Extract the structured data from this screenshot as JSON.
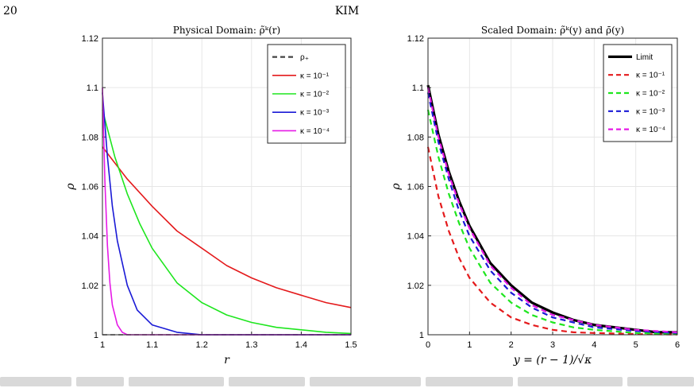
{
  "page": {
    "number": "20",
    "running_head": "KIM"
  },
  "colors": {
    "rho_plus": "#444444",
    "k1": "#e41a1c",
    "k2": "#1ee61e",
    "k3": "#1a1ad6",
    "k4": "#e61ae6",
    "limit": "#000000"
  },
  "chart_data": [
    {
      "type": "line",
      "title": "Physical Domain: ρ̃ᵏ(r)",
      "xlabel": "r",
      "ylabel": "ρ",
      "xlim": [
        1,
        1.5
      ],
      "ylim": [
        1,
        1.12
      ],
      "xticks": [
        "1",
        "1.1",
        "1.2",
        "1.3",
        "1.4",
        "1.5"
      ],
      "yticks": [
        "1",
        "1.02",
        "1.04",
        "1.06",
        "1.08",
        "1.1",
        "1.12"
      ],
      "grid": true,
      "legend_position": "top-right",
      "series": [
        {
          "name": "ρ₊",
          "style": "dashed",
          "color": "#444444",
          "x": [
            1,
            1.5
          ],
          "y": [
            1,
            1
          ]
        },
        {
          "name": "κ = 10⁻¹",
          "style": "solid",
          "color": "#e41a1c",
          "x": [
            1,
            1.05,
            1.1,
            1.15,
            1.2,
            1.25,
            1.3,
            1.35,
            1.4,
            1.45,
            1.5
          ],
          "y": [
            1.076,
            1.063,
            1.052,
            1.042,
            1.035,
            1.028,
            1.023,
            1.019,
            1.016,
            1.013,
            1.011
          ]
        },
        {
          "name": "κ = 10⁻²",
          "style": "solid",
          "color": "#1ee61e",
          "x": [
            1,
            1.025,
            1.05,
            1.075,
            1.1,
            1.15,
            1.2,
            1.25,
            1.3,
            1.35,
            1.4,
            1.45,
            1.5
          ],
          "y": [
            1.091,
            1.072,
            1.057,
            1.045,
            1.035,
            1.021,
            1.013,
            1.008,
            1.005,
            1.003,
            1.002,
            1.001,
            1.0005
          ]
        },
        {
          "name": "κ = 10⁻³",
          "style": "solid",
          "color": "#1a1ad6",
          "x": [
            1,
            1.01,
            1.02,
            1.03,
            1.05,
            1.07,
            1.1,
            1.15,
            1.2,
            1.3,
            1.5
          ],
          "y": [
            1.098,
            1.072,
            1.052,
            1.038,
            1.02,
            1.01,
            1.004,
            1.001,
            1.0,
            1.0,
            1.0
          ]
        },
        {
          "name": "κ = 10⁻⁴",
          "style": "solid",
          "color": "#e61ae6",
          "x": [
            1,
            1.005,
            1.01,
            1.015,
            1.02,
            1.03,
            1.04,
            1.05,
            1.07,
            1.1,
            1.5
          ],
          "y": [
            1.1,
            1.062,
            1.036,
            1.021,
            1.012,
            1.004,
            1.001,
            1.0,
            1.0,
            1.0,
            1.0
          ]
        }
      ]
    },
    {
      "type": "line",
      "title": "Scaled Domain: ρ̃ᵏ(y) and ρ̄(y)",
      "xlabel": "y = (r − 1)/√κ",
      "ylabel": "ρ",
      "xlim": [
        0,
        6
      ],
      "ylim": [
        1,
        1.12
      ],
      "xticks": [
        "0",
        "1",
        "2",
        "3",
        "4",
        "5",
        "6"
      ],
      "yticks": [
        "1",
        "1.02",
        "1.04",
        "1.06",
        "1.08",
        "1.1",
        "1.12"
      ],
      "grid": true,
      "legend_position": "top-right",
      "series": [
        {
          "name": "Limit",
          "style": "solid-thick",
          "color": "#000000",
          "x": [
            0,
            0.25,
            0.5,
            0.75,
            1,
            1.5,
            2,
            2.5,
            3,
            3.5,
            4,
            4.5,
            5,
            5.5,
            6
          ],
          "y": [
            1.101,
            1.081,
            1.066,
            1.054,
            1.044,
            1.029,
            1.02,
            1.013,
            1.009,
            1.006,
            1.004,
            1.003,
            1.002,
            1.001,
            1.001
          ]
        },
        {
          "name": "κ = 10⁻¹",
          "style": "dashed",
          "color": "#e41a1c",
          "x": [
            0,
            0.25,
            0.5,
            0.75,
            1,
            1.5,
            2,
            2.5,
            3,
            3.5,
            4,
            5,
            6
          ],
          "y": [
            1.076,
            1.056,
            1.042,
            1.031,
            1.023,
            1.013,
            1.007,
            1.004,
            1.002,
            1.001,
            1.0007,
            1.0003,
            1.0001
          ]
        },
        {
          "name": "κ = 10⁻²",
          "style": "dashed",
          "color": "#1ee61e",
          "x": [
            0,
            0.25,
            0.5,
            0.75,
            1,
            1.5,
            2,
            2.5,
            3,
            3.5,
            4,
            5,
            6
          ],
          "y": [
            1.091,
            1.072,
            1.057,
            1.045,
            1.035,
            1.021,
            1.013,
            1.008,
            1.005,
            1.003,
            1.002,
            1.0007,
            1.0003
          ]
        },
        {
          "name": "κ = 10⁻³",
          "style": "dashed",
          "color": "#1a1ad6",
          "x": [
            0,
            0.25,
            0.5,
            0.75,
            1,
            1.5,
            2,
            2.5,
            3,
            3.5,
            4,
            5,
            6
          ],
          "y": [
            1.098,
            1.078,
            1.063,
            1.05,
            1.04,
            1.026,
            1.017,
            1.011,
            1.007,
            1.005,
            1.003,
            1.0015,
            1.0007
          ]
        },
        {
          "name": "κ = 10⁻⁴",
          "style": "dashed",
          "color": "#e61ae6",
          "x": [
            0,
            0.25,
            0.5,
            0.75,
            1,
            1.5,
            2,
            2.5,
            3,
            3.5,
            4,
            5,
            6
          ],
          "y": [
            1.1,
            1.08,
            1.065,
            1.053,
            1.043,
            1.028,
            1.019,
            1.012,
            1.008,
            1.006,
            1.004,
            1.002,
            1.001
          ]
        }
      ]
    }
  ]
}
